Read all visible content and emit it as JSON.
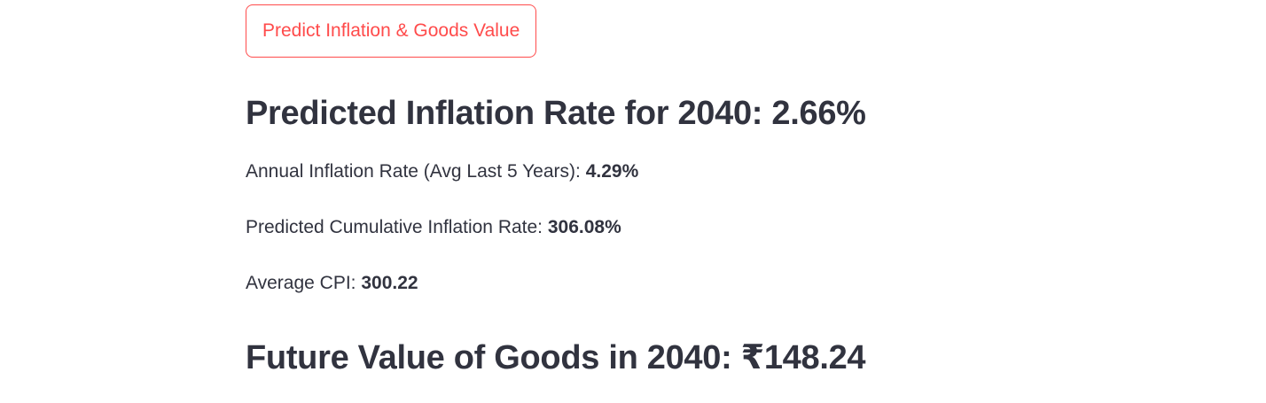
{
  "predict_button": {
    "label": "Predict Inflation & Goods Value"
  },
  "inflation_prediction": {
    "heading": "Predicted Inflation Rate for 2040: 2.66%"
  },
  "metrics": [
    {
      "label": "Annual Inflation Rate (Avg Last 5 Years): ",
      "value": "4.29%"
    },
    {
      "label": "Predicted Cumulative Inflation Rate: ",
      "value": "306.08%"
    },
    {
      "label": "Average CPI: ",
      "value": "300.22"
    }
  ],
  "goods_prediction": {
    "heading": "Future Value of Goods in 2040: ₹148.24"
  },
  "colors": {
    "accent": "#ff4b4b",
    "text": "#31333f",
    "background": "#ffffff"
  }
}
